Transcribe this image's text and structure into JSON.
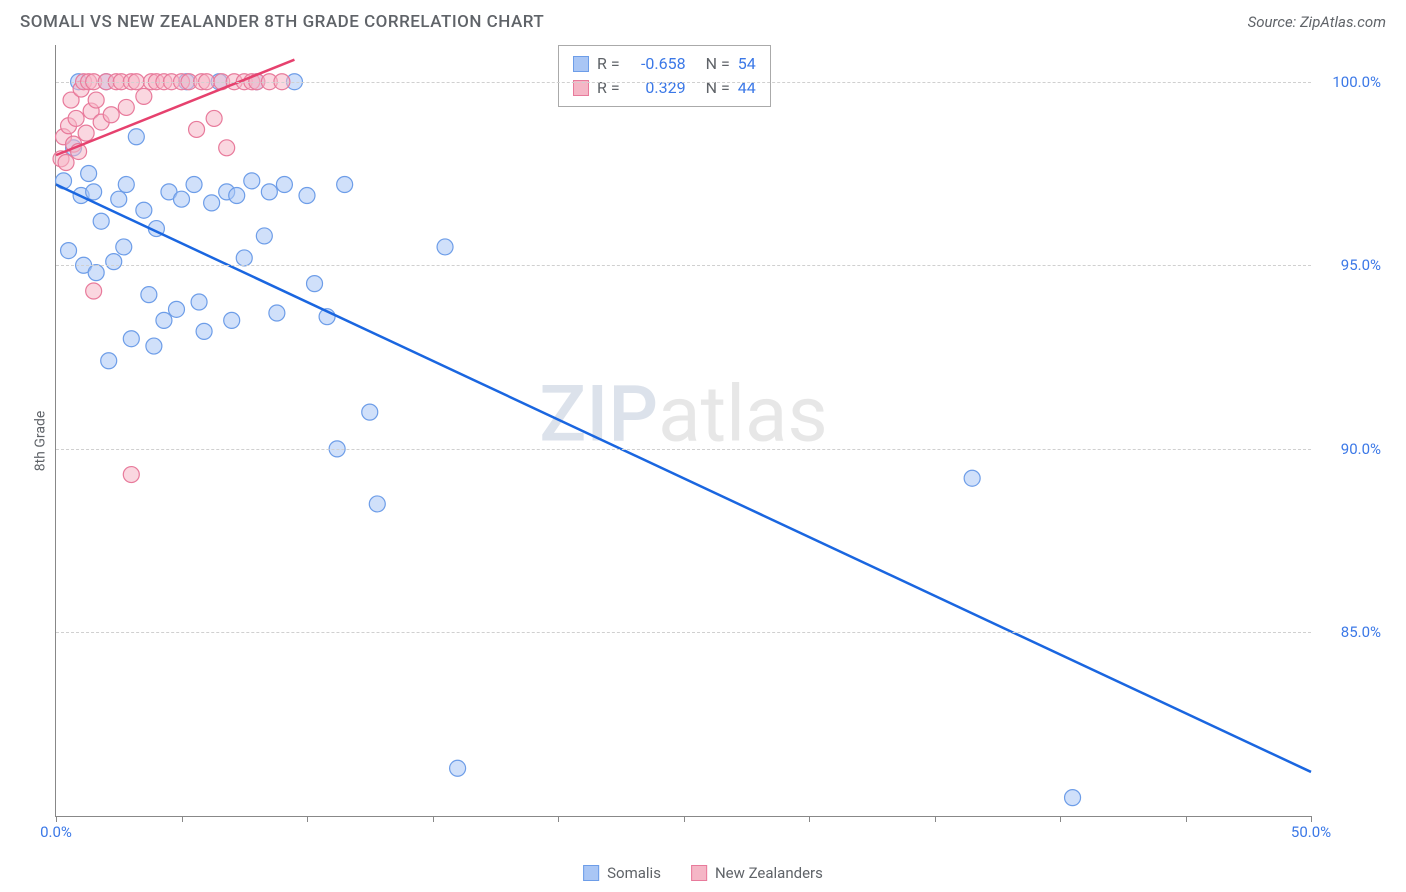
{
  "header": {
    "title": "SOMALI VS NEW ZEALANDER 8TH GRADE CORRELATION CHART",
    "source": "Source: ZipAtlas.com"
  },
  "chart": {
    "type": "scatter",
    "ylabel": "8th Grade",
    "xlim": [
      0,
      50
    ],
    "ylim": [
      80,
      101
    ],
    "ytick_values": [
      85,
      90,
      95,
      100
    ],
    "ytick_labels": [
      "85.0%",
      "90.0%",
      "95.0%",
      "100.0%"
    ],
    "xtick_values": [
      0,
      5,
      10,
      15,
      20,
      25,
      30,
      35,
      40,
      45,
      50
    ],
    "xtick_labels": {
      "0": "0.0%",
      "50": "50.0%"
    },
    "background_color": "#ffffff",
    "grid_color": "#d0d0d0",
    "axis_color": "#888888",
    "label_color": "#5f6368",
    "tick_label_color": "#3b78e7",
    "label_fontsize": 14,
    "tick_fontsize": 15,
    "series": [
      {
        "name": "Somalis",
        "color_fill": "#a9c6f5",
        "color_stroke": "#6d9de8",
        "marker_radius": 8,
        "fill_opacity": 0.55,
        "R": "-0.658",
        "N": "54",
        "trend": {
          "x1": 0,
          "y1": 97.2,
          "x2": 50,
          "y2": 81.2,
          "color": "#1a66e0",
          "width": 2.5
        },
        "points": [
          [
            0.3,
            97.3
          ],
          [
            0.5,
            95.4
          ],
          [
            0.7,
            98.2
          ],
          [
            0.9,
            100.0
          ],
          [
            1.0,
            96.9
          ],
          [
            1.1,
            95.0
          ],
          [
            1.3,
            97.5
          ],
          [
            1.5,
            97.0
          ],
          [
            1.6,
            94.8
          ],
          [
            1.8,
            96.2
          ],
          [
            2.0,
            100.0
          ],
          [
            2.1,
            92.4
          ],
          [
            2.3,
            95.1
          ],
          [
            2.5,
            96.8
          ],
          [
            2.7,
            95.5
          ],
          [
            2.8,
            97.2
          ],
          [
            3.0,
            93.0
          ],
          [
            3.2,
            98.5
          ],
          [
            3.5,
            96.5
          ],
          [
            3.7,
            94.2
          ],
          [
            3.9,
            92.8
          ],
          [
            4.0,
            96.0
          ],
          [
            4.3,
            93.5
          ],
          [
            4.5,
            97.0
          ],
          [
            4.8,
            93.8
          ],
          [
            5.0,
            96.8
          ],
          [
            5.2,
            100.0
          ],
          [
            5.5,
            97.2
          ],
          [
            5.7,
            94.0
          ],
          [
            5.9,
            93.2
          ],
          [
            6.2,
            96.7
          ],
          [
            6.5,
            100.0
          ],
          [
            6.8,
            97.0
          ],
          [
            7.0,
            93.5
          ],
          [
            7.2,
            96.9
          ],
          [
            7.5,
            95.2
          ],
          [
            7.8,
            97.3
          ],
          [
            8.0,
            100.0
          ],
          [
            8.3,
            95.8
          ],
          [
            8.5,
            97.0
          ],
          [
            8.8,
            93.7
          ],
          [
            9.1,
            97.2
          ],
          [
            9.5,
            100.0
          ],
          [
            10.0,
            96.9
          ],
          [
            10.3,
            94.5
          ],
          [
            10.8,
            93.6
          ],
          [
            11.2,
            90.0
          ],
          [
            11.5,
            97.2
          ],
          [
            12.5,
            91.0
          ],
          [
            12.8,
            88.5
          ],
          [
            15.5,
            95.5
          ],
          [
            16.0,
            81.3
          ],
          [
            36.5,
            89.2
          ],
          [
            40.5,
            80.5
          ]
        ]
      },
      {
        "name": "New Zealanders",
        "color_fill": "#f5b6c6",
        "color_stroke": "#e87a9b",
        "marker_radius": 8,
        "fill_opacity": 0.55,
        "R": "0.329",
        "N": "44",
        "trend": {
          "x1": 0,
          "y1": 98.0,
          "x2": 9.5,
          "y2": 100.6,
          "color": "#e6416e",
          "width": 2.5
        },
        "points": [
          [
            0.2,
            97.9
          ],
          [
            0.3,
            98.5
          ],
          [
            0.4,
            97.8
          ],
          [
            0.5,
            98.8
          ],
          [
            0.6,
            99.5
          ],
          [
            0.7,
            98.3
          ],
          [
            0.8,
            99.0
          ],
          [
            0.9,
            98.1
          ],
          [
            1.0,
            99.8
          ],
          [
            1.1,
            100.0
          ],
          [
            1.2,
            98.6
          ],
          [
            1.3,
            100.0
          ],
          [
            1.4,
            99.2
          ],
          [
            1.5,
            100.0
          ],
          [
            1.6,
            99.5
          ],
          [
            1.8,
            98.9
          ],
          [
            2.0,
            100.0
          ],
          [
            2.2,
            99.1
          ],
          [
            2.4,
            100.0
          ],
          [
            2.6,
            100.0
          ],
          [
            2.8,
            99.3
          ],
          [
            3.0,
            100.0
          ],
          [
            3.2,
            100.0
          ],
          [
            3.5,
            99.6
          ],
          [
            3.8,
            100.0
          ],
          [
            4.0,
            100.0
          ],
          [
            4.3,
            100.0
          ],
          [
            4.6,
            100.0
          ],
          [
            5.0,
            100.0
          ],
          [
            5.3,
            100.0
          ],
          [
            5.6,
            98.7
          ],
          [
            5.8,
            100.0
          ],
          [
            6.0,
            100.0
          ],
          [
            6.3,
            99.0
          ],
          [
            6.6,
            100.0
          ],
          [
            6.8,
            98.2
          ],
          [
            7.1,
            100.0
          ],
          [
            7.5,
            100.0
          ],
          [
            7.8,
            100.0
          ],
          [
            8.0,
            100.0
          ],
          [
            8.5,
            100.0
          ],
          [
            9.0,
            100.0
          ],
          [
            1.5,
            94.3
          ],
          [
            3.0,
            89.3
          ]
        ]
      }
    ],
    "stats_box": {
      "border_color": "#aaaaaa",
      "rows": [
        {
          "swatch_fill": "#a9c6f5",
          "swatch_stroke": "#6d9de8",
          "r_label": "R =",
          "r_val": "-0.658",
          "n_label": "N =",
          "n_val": "54"
        },
        {
          "swatch_fill": "#f5b6c6",
          "swatch_stroke": "#e87a9b",
          "r_label": "R =",
          "r_val": "0.329",
          "n_label": "N =",
          "n_val": "44"
        }
      ]
    },
    "legend": {
      "items": [
        {
          "label": "Somalis",
          "fill": "#a9c6f5",
          "stroke": "#6d9de8"
        },
        {
          "label": "New Zealanders",
          "fill": "#f5b6c6",
          "stroke": "#e87a9b"
        }
      ]
    },
    "watermark": {
      "part1": "ZIP",
      "part2": "atlas"
    }
  }
}
